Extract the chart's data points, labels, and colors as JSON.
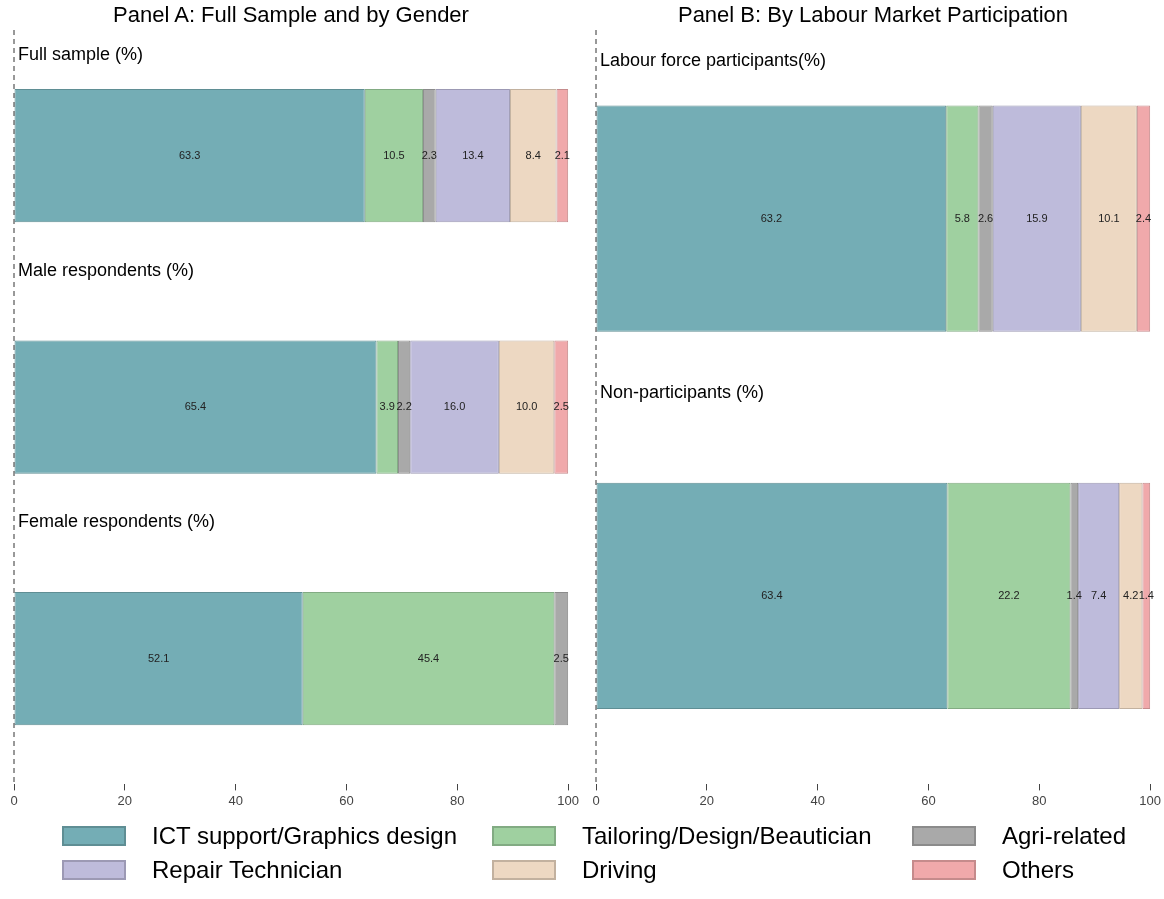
{
  "chart_data": [
    {
      "type": "bar",
      "orientation": "horizontal",
      "stacked": true,
      "title": "Panel A: Full Sample and by Gender",
      "categories": [
        "Full sample (%)",
        "Male respondents (%)",
        "Female respondents (%)"
      ],
      "series": [
        {
          "name": "ICT support/Graphics design",
          "color": "#74adb5",
          "values": [
            63.3,
            65.4,
            52.1
          ],
          "value_labels": [
            "63.3",
            "65.4",
            "52.1"
          ]
        },
        {
          "name": "Tailoring/Design/Beautician",
          "color": "#9fd0a0",
          "values": [
            10.5,
            3.9,
            45.4
          ],
          "value_labels": [
            "10.5",
            "3.9",
            "45.4"
          ]
        },
        {
          "name": "Agri-related",
          "color": "#a9a9a9",
          "values": [
            2.3,
            2.2,
            2.5
          ],
          "value_labels": [
            "2.3",
            "2.2",
            "2.5"
          ]
        },
        {
          "name": "Repair Technician",
          "color": "#bebbdb",
          "values": [
            13.4,
            16.0,
            null
          ],
          "value_labels": [
            "13.4",
            "16.0",
            null
          ]
        },
        {
          "name": "Driving",
          "color": "#edd8c2",
          "values": [
            8.4,
            10.0,
            null
          ],
          "value_labels": [
            "8.4",
            "10.0",
            null
          ]
        },
        {
          "name": "Others",
          "color": "#f0a9ab",
          "values": [
            2.1,
            2.5,
            null
          ],
          "value_labels": [
            "2.1",
            "2.5",
            null
          ]
        }
      ],
      "xlim": [
        0,
        100
      ],
      "xticks": [
        0,
        20,
        40,
        60,
        80,
        100
      ],
      "grid": false,
      "legend": "bottom"
    },
    {
      "type": "bar",
      "orientation": "horizontal",
      "stacked": true,
      "title": "Panel B: By Labour Market Participation",
      "categories": [
        "Labour force participants(%)",
        "Non-participants (%)"
      ],
      "series": [
        {
          "color": "#74adb5",
          "values": [
            63.2,
            63.4
          ],
          "value_labels": [
            "63.2",
            "63.4"
          ]
        },
        {
          "color": "#9fd0a0",
          "values": [
            5.8,
            22.2
          ],
          "value_labels": [
            "5.8",
            "22.2"
          ]
        },
        {
          "color": "#a9a9a9",
          "values": [
            2.6,
            1.4
          ],
          "value_labels": [
            "2.6",
            "1.4"
          ]
        },
        {
          "color": "#bebbdb",
          "values": [
            15.9,
            7.4
          ],
          "value_labels": [
            "15.9",
            "7.4"
          ]
        },
        {
          "color": "#edd8c2",
          "values": [
            10.1,
            4.2
          ],
          "value_labels": [
            "10.1",
            "4.2"
          ]
        },
        {
          "color": "#f0a9ab",
          "values": [
            2.4,
            1.4
          ],
          "value_labels": [
            "2.4",
            "1.4"
          ]
        }
      ],
      "xlim": [
        0,
        100
      ],
      "xticks": [
        0,
        20,
        40,
        60,
        80,
        100
      ],
      "grid": false
    }
  ]
}
